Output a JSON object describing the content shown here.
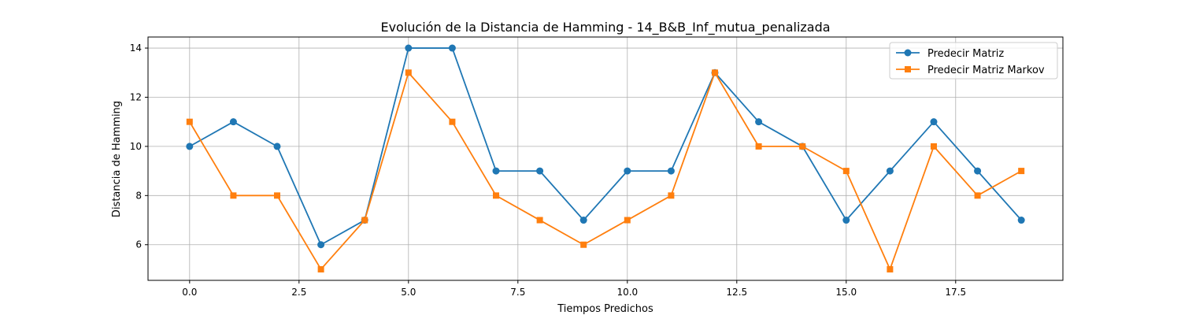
{
  "chart_data": {
    "type": "line",
    "title": "Evolución de la Distancia de Hamming - 14_B&B_Inf_mutua_penalizada",
    "xlabel": "Tiempos Predichos",
    "ylabel": "Distancia de Hamming",
    "xlim": [
      -0.95,
      19.95
    ],
    "ylim": [
      4.55,
      14.45
    ],
    "xticks": [
      0.0,
      2.5,
      5.0,
      7.5,
      10.0,
      12.5,
      15.0,
      17.5
    ],
    "xtick_labels": [
      "0.0",
      "2.5",
      "5.0",
      "7.5",
      "10.0",
      "12.5",
      "15.0",
      "17.5"
    ],
    "yticks": [
      6,
      8,
      10,
      12,
      14
    ],
    "ytick_labels": [
      "6",
      "8",
      "10",
      "12",
      "14"
    ],
    "grid": true,
    "legend_position": "top-right",
    "x": [
      0,
      1,
      2,
      3,
      4,
      5,
      6,
      7,
      8,
      9,
      10,
      11,
      12,
      13,
      14,
      15,
      16,
      17,
      18,
      19
    ],
    "series": [
      {
        "name": "Predecir Matriz",
        "color": "#1f77b4",
        "marker": "circle",
        "values": [
          10,
          11,
          10,
          6,
          7,
          14,
          14,
          9,
          9,
          7,
          9,
          9,
          13,
          11,
          10,
          7,
          9,
          11,
          9,
          7
        ]
      },
      {
        "name": "Predecir Matriz Markov",
        "color": "#ff7f0e",
        "marker": "square",
        "values": [
          11,
          8,
          8,
          5,
          7,
          13,
          11,
          8,
          7,
          6,
          7,
          8,
          13,
          10,
          10,
          9,
          5,
          10,
          8,
          9
        ]
      }
    ]
  }
}
